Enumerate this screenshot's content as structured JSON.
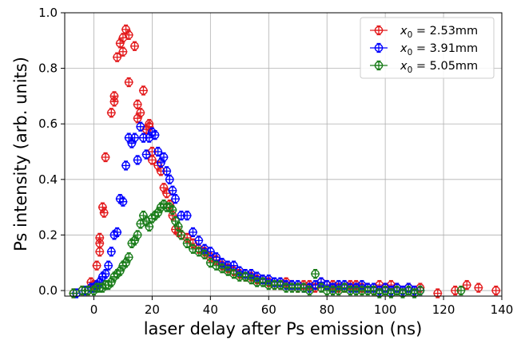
{
  "chart_data": {
    "type": "scatter",
    "xlabel": "laser delay after Ps emission (ns)",
    "ylabel": "Ps intensity (arb. units)",
    "xlim": [
      -10,
      140
    ],
    "ylim": [
      -0.02,
      1.0
    ],
    "xticks": [
      0,
      20,
      40,
      60,
      80,
      100,
      120,
      140
    ],
    "yticks": [
      0.0,
      0.2,
      0.4,
      0.6,
      0.8,
      1.0
    ],
    "xtick_labels": [
      "0",
      "20",
      "40",
      "60",
      "80",
      "100",
      "120",
      "140"
    ],
    "ytick_labels": [
      "0.0",
      "0.2",
      "0.4",
      "0.6",
      "0.8",
      "1.0"
    ],
    "grid": true,
    "legend_position": "top-right",
    "marker": "circle-with-errorbars",
    "series": [
      {
        "name": "x0 = 2.53mm",
        "legend_var": "x",
        "legend_sub": "0",
        "legend_rest": " = 2.53mm",
        "color": "#e31a1c",
        "points": [
          [
            -7,
            -0.01
          ],
          [
            -4,
            0.0
          ],
          [
            -2,
            0.0
          ],
          [
            -1,
            0.03
          ],
          [
            0,
            0.02
          ],
          [
            1,
            0.09
          ],
          [
            2,
            0.17
          ],
          [
            2,
            0.14
          ],
          [
            2,
            0.19
          ],
          [
            3,
            0.3
          ],
          [
            3.5,
            0.28
          ],
          [
            4,
            0.48
          ],
          [
            6,
            0.64
          ],
          [
            7,
            0.7
          ],
          [
            7,
            0.68
          ],
          [
            8,
            0.84
          ],
          [
            9,
            0.89
          ],
          [
            10,
            0.86
          ],
          [
            10,
            0.91
          ],
          [
            11,
            0.94
          ],
          [
            12,
            0.92
          ],
          [
            12,
            0.75
          ],
          [
            14,
            0.88
          ],
          [
            15,
            0.67
          ],
          [
            15,
            0.62
          ],
          [
            16,
            0.64
          ],
          [
            17,
            0.72
          ],
          [
            18,
            0.58
          ],
          [
            19,
            0.6
          ],
          [
            19,
            0.59
          ],
          [
            20,
            0.5
          ],
          [
            20,
            0.47
          ],
          [
            22,
            0.45
          ],
          [
            23,
            0.43
          ],
          [
            24,
            0.37
          ],
          [
            25,
            0.35
          ],
          [
            26,
            0.31
          ],
          [
            27,
            0.27
          ],
          [
            28,
            0.22
          ],
          [
            29,
            0.21
          ],
          [
            30,
            0.2
          ],
          [
            32,
            0.19
          ],
          [
            34,
            0.17
          ],
          [
            36,
            0.15
          ],
          [
            38,
            0.14
          ],
          [
            40,
            0.12
          ],
          [
            42,
            0.11
          ],
          [
            44,
            0.09
          ],
          [
            46,
            0.08
          ],
          [
            48,
            0.07
          ],
          [
            50,
            0.06
          ],
          [
            52,
            0.05
          ],
          [
            54,
            0.05
          ],
          [
            56,
            0.04
          ],
          [
            58,
            0.04
          ],
          [
            60,
            0.03
          ],
          [
            62,
            0.02
          ],
          [
            64,
            0.02
          ],
          [
            66,
            0.03
          ],
          [
            68,
            0.02
          ],
          [
            70,
            0.01
          ],
          [
            72,
            0.02
          ],
          [
            74,
            0.02
          ],
          [
            76,
            0.01
          ],
          [
            78,
            0.03
          ],
          [
            80,
            0.02
          ],
          [
            82,
            0.02
          ],
          [
            84,
            0.01
          ],
          [
            86,
            0.01
          ],
          [
            88,
            0.02
          ],
          [
            90,
            0.02
          ],
          [
            92,
            0.01
          ],
          [
            94,
            0.01
          ],
          [
            96,
            0.0
          ],
          [
            98,
            0.02
          ],
          [
            100,
            0.01
          ],
          [
            102,
            0.02
          ],
          [
            104,
            0.01
          ],
          [
            106,
            0.0
          ],
          [
            108,
            0.01
          ],
          [
            110,
            0.0
          ],
          [
            112,
            0.01
          ],
          [
            118,
            -0.01
          ],
          [
            124,
            0.0
          ],
          [
            128,
            0.02
          ],
          [
            132,
            0.01
          ],
          [
            138,
            0.0
          ]
        ]
      },
      {
        "name": "x0 = 3.91mm",
        "legend_var": "x",
        "legend_sub": "0",
        "legend_rest": " = 3.91mm",
        "color": "#0000ff",
        "points": [
          [
            -6,
            -0.01
          ],
          [
            -3,
            0.0
          ],
          [
            -1,
            0.01
          ],
          [
            0,
            0.01
          ],
          [
            1,
            0.02
          ],
          [
            2,
            0.03
          ],
          [
            3,
            0.05
          ],
          [
            4,
            0.06
          ],
          [
            5,
            0.09
          ],
          [
            6,
            0.14
          ],
          [
            7,
            0.2
          ],
          [
            8,
            0.21
          ],
          [
            9,
            0.33
          ],
          [
            10,
            0.32
          ],
          [
            11,
            0.45
          ],
          [
            12,
            0.55
          ],
          [
            13,
            0.53
          ],
          [
            14,
            0.55
          ],
          [
            15,
            0.47
          ],
          [
            16,
            0.59
          ],
          [
            17,
            0.55
          ],
          [
            18,
            0.49
          ],
          [
            19,
            0.55
          ],
          [
            20,
            0.57
          ],
          [
            21,
            0.56
          ],
          [
            22,
            0.5
          ],
          [
            23,
            0.46
          ],
          [
            24,
            0.48
          ],
          [
            25,
            0.43
          ],
          [
            26,
            0.4
          ],
          [
            27,
            0.36
          ],
          [
            28,
            0.33
          ],
          [
            30,
            0.27
          ],
          [
            32,
            0.27
          ],
          [
            34,
            0.21
          ],
          [
            36,
            0.18
          ],
          [
            38,
            0.15
          ],
          [
            40,
            0.14
          ],
          [
            42,
            0.12
          ],
          [
            44,
            0.1
          ],
          [
            46,
            0.09
          ],
          [
            48,
            0.09
          ],
          [
            50,
            0.07
          ],
          [
            52,
            0.06
          ],
          [
            54,
            0.06
          ],
          [
            56,
            0.05
          ],
          [
            58,
            0.04
          ],
          [
            60,
            0.04
          ],
          [
            62,
            0.03
          ],
          [
            64,
            0.03
          ],
          [
            66,
            0.02
          ],
          [
            68,
            0.02
          ],
          [
            70,
            0.02
          ],
          [
            72,
            0.01
          ],
          [
            74,
            0.01
          ],
          [
            76,
            0.02
          ],
          [
            78,
            0.03
          ],
          [
            80,
            0.02
          ],
          [
            82,
            0.01
          ],
          [
            84,
            0.02
          ],
          [
            86,
            0.02
          ],
          [
            88,
            0.01
          ],
          [
            90,
            0.01
          ],
          [
            92,
            0.02
          ],
          [
            94,
            0.01
          ],
          [
            96,
            0.01
          ],
          [
            98,
            0.0
          ],
          [
            100,
            0.01
          ],
          [
            102,
            0.0
          ],
          [
            104,
            0.01
          ],
          [
            106,
            0.0
          ],
          [
            108,
            0.01
          ],
          [
            110,
            0.0
          ],
          [
            112,
            0.0
          ]
        ]
      },
      {
        "name": "x0 = 5.05mm",
        "legend_var": "x",
        "legend_sub": "0",
        "legend_rest": " = 5.05mm",
        "color": "#1a7d1a",
        "points": [
          [
            -7,
            -0.01
          ],
          [
            -4,
            0.0
          ],
          [
            -2,
            0.0
          ],
          [
            0,
            0.0
          ],
          [
            1,
            0.01
          ],
          [
            2,
            0.01
          ],
          [
            3,
            0.01
          ],
          [
            4,
            0.02
          ],
          [
            5,
            0.02
          ],
          [
            6,
            0.03
          ],
          [
            7,
            0.05
          ],
          [
            8,
            0.06
          ],
          [
            9,
            0.07
          ],
          [
            10,
            0.09
          ],
          [
            11,
            0.1
          ],
          [
            12,
            0.12
          ],
          [
            13,
            0.17
          ],
          [
            14,
            0.18
          ],
          [
            15,
            0.2
          ],
          [
            16,
            0.24
          ],
          [
            17,
            0.27
          ],
          [
            18,
            0.25
          ],
          [
            19,
            0.23
          ],
          [
            20,
            0.26
          ],
          [
            21,
            0.27
          ],
          [
            22,
            0.28
          ],
          [
            23,
            0.3
          ],
          [
            24,
            0.31
          ],
          [
            25,
            0.3
          ],
          [
            26,
            0.3
          ],
          [
            27,
            0.29
          ],
          [
            28,
            0.25
          ],
          [
            29,
            0.23
          ],
          [
            30,
            0.2
          ],
          [
            32,
            0.17
          ],
          [
            34,
            0.15
          ],
          [
            36,
            0.14
          ],
          [
            38,
            0.13
          ],
          [
            40,
            0.1
          ],
          [
            42,
            0.09
          ],
          [
            44,
            0.08
          ],
          [
            46,
            0.07
          ],
          [
            48,
            0.06
          ],
          [
            50,
            0.05
          ],
          [
            52,
            0.05
          ],
          [
            54,
            0.04
          ],
          [
            56,
            0.03
          ],
          [
            58,
            0.03
          ],
          [
            60,
            0.02
          ],
          [
            62,
            0.02
          ],
          [
            64,
            0.02
          ],
          [
            66,
            0.01
          ],
          [
            68,
            0.01
          ],
          [
            70,
            0.01
          ],
          [
            72,
            0.01
          ],
          [
            74,
            0.0
          ],
          [
            76,
            0.06
          ],
          [
            78,
            0.01
          ],
          [
            80,
            0.0
          ],
          [
            82,
            0.0
          ],
          [
            84,
            0.0
          ],
          [
            86,
            0.01
          ],
          [
            88,
            0.0
          ],
          [
            90,
            0.0
          ],
          [
            92,
            0.0
          ],
          [
            94,
            0.0
          ],
          [
            96,
            0.0
          ],
          [
            98,
            -0.01
          ],
          [
            100,
            0.0
          ],
          [
            102,
            -0.01
          ],
          [
            104,
            0.0
          ],
          [
            106,
            -0.01
          ],
          [
            108,
            0.0
          ],
          [
            110,
            -0.01
          ],
          [
            112,
            0.0
          ],
          [
            126,
            0.0
          ]
        ]
      }
    ]
  }
}
